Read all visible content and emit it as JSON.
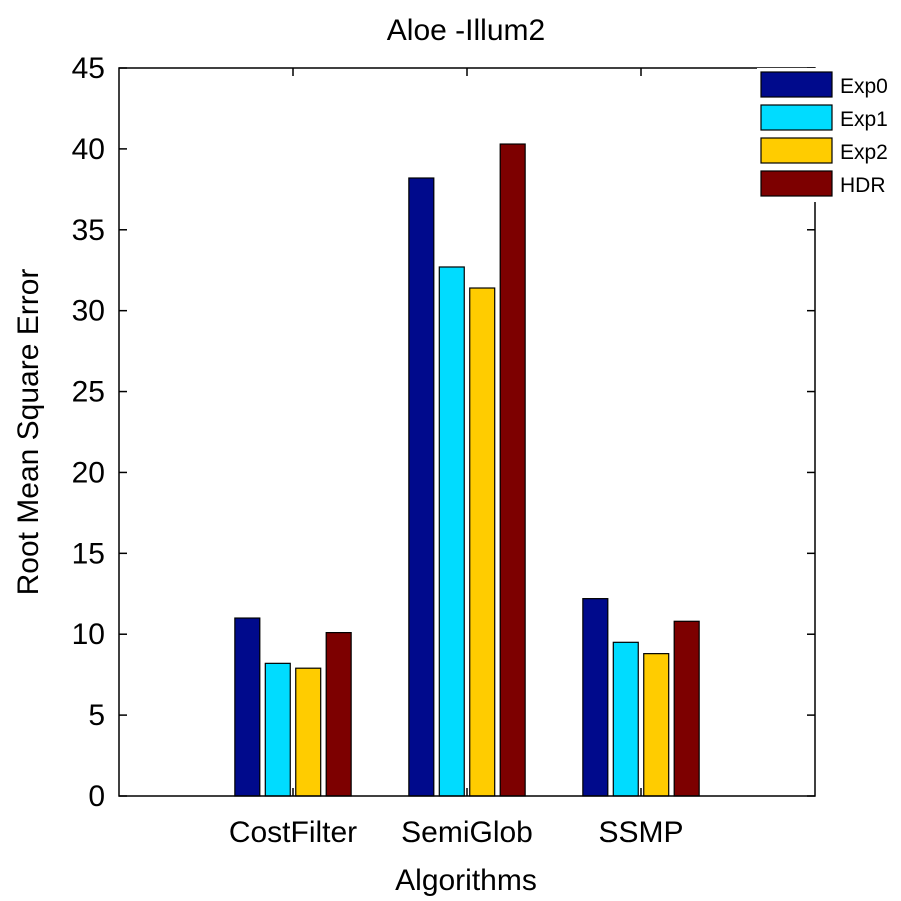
{
  "chart_data": {
    "type": "bar",
    "title": "Aloe -Illum2",
    "xlabel": "Algorithms",
    "ylabel": "Root Mean Square Error",
    "ylim": [
      0,
      45
    ],
    "yticks": [
      0,
      5,
      10,
      15,
      20,
      25,
      30,
      35,
      40,
      45
    ],
    "categories": [
      "CostFilter",
      "SemiGlob",
      "SSMP"
    ],
    "series": [
      {
        "name": "Exp0",
        "color": "#000a8c",
        "values": [
          11.0,
          38.2,
          12.2
        ]
      },
      {
        "name": "Exp1",
        "color": "#00dcff",
        "values": [
          8.2,
          32.7,
          9.5
        ]
      },
      {
        "name": "Exp2",
        "color": "#ffcc00",
        "values": [
          7.9,
          31.4,
          8.8
        ]
      },
      {
        "name": "HDR",
        "color": "#7d0000",
        "values": [
          10.1,
          40.3,
          10.8
        ]
      }
    ],
    "grid": false,
    "legend": "top-right"
  }
}
